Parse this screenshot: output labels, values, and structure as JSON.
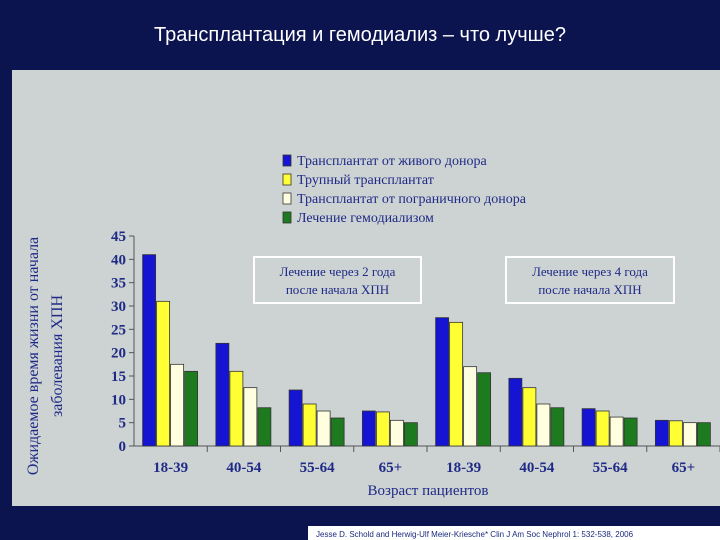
{
  "slide": {
    "title": "Трансплантация и гемодиализ – что лучше?",
    "citation": "Jesse D. Schold and Herwig-Ulf Meier-Kriesche* Clin J Am Soc Nephrol 1: 532-538, 2006"
  },
  "chart_data": {
    "type": "bar",
    "ylabel": "Ожидаемое время жизни от начала заболевания ХПН",
    "xlabel": "Возраст пациентов",
    "ylim": [
      0,
      45
    ],
    "yticks": [
      0,
      5,
      10,
      15,
      20,
      25,
      30,
      35,
      40,
      45
    ],
    "grid": false,
    "legend_position": "top-center",
    "categories": [
      "18-39",
      "40-54",
      "55-64",
      "65+",
      "18-39",
      "40-54",
      "55-64",
      "65+"
    ],
    "series": [
      {
        "name": "Трансплантат от живого донора",
        "color": "#1414d2",
        "values": [
          41,
          22,
          12,
          7.5,
          27.5,
          14.5,
          8,
          5.5
        ]
      },
      {
        "name": "Трупный трансплантат",
        "color": "#ffff33",
        "values": [
          31,
          16,
          9,
          7.3,
          26.5,
          12.5,
          7.5,
          5.4
        ]
      },
      {
        "name": "Трансплантат от пограничного донора",
        "color": "#ffffe0",
        "values": [
          17.5,
          12.5,
          7.5,
          5.5,
          17,
          9,
          6.2,
          5
        ]
      },
      {
        "name": "Лечение гемодиализом",
        "color": "#1e7a1e",
        "values": [
          16,
          8.2,
          6,
          5,
          15.7,
          8.2,
          6,
          5
        ]
      }
    ],
    "annotations": [
      {
        "lines": [
          "Лечение через 2 года",
          "после начала ХПН"
        ]
      },
      {
        "lines": [
          "Лечение через 4 года",
          "после начала ХПН"
        ]
      }
    ]
  }
}
